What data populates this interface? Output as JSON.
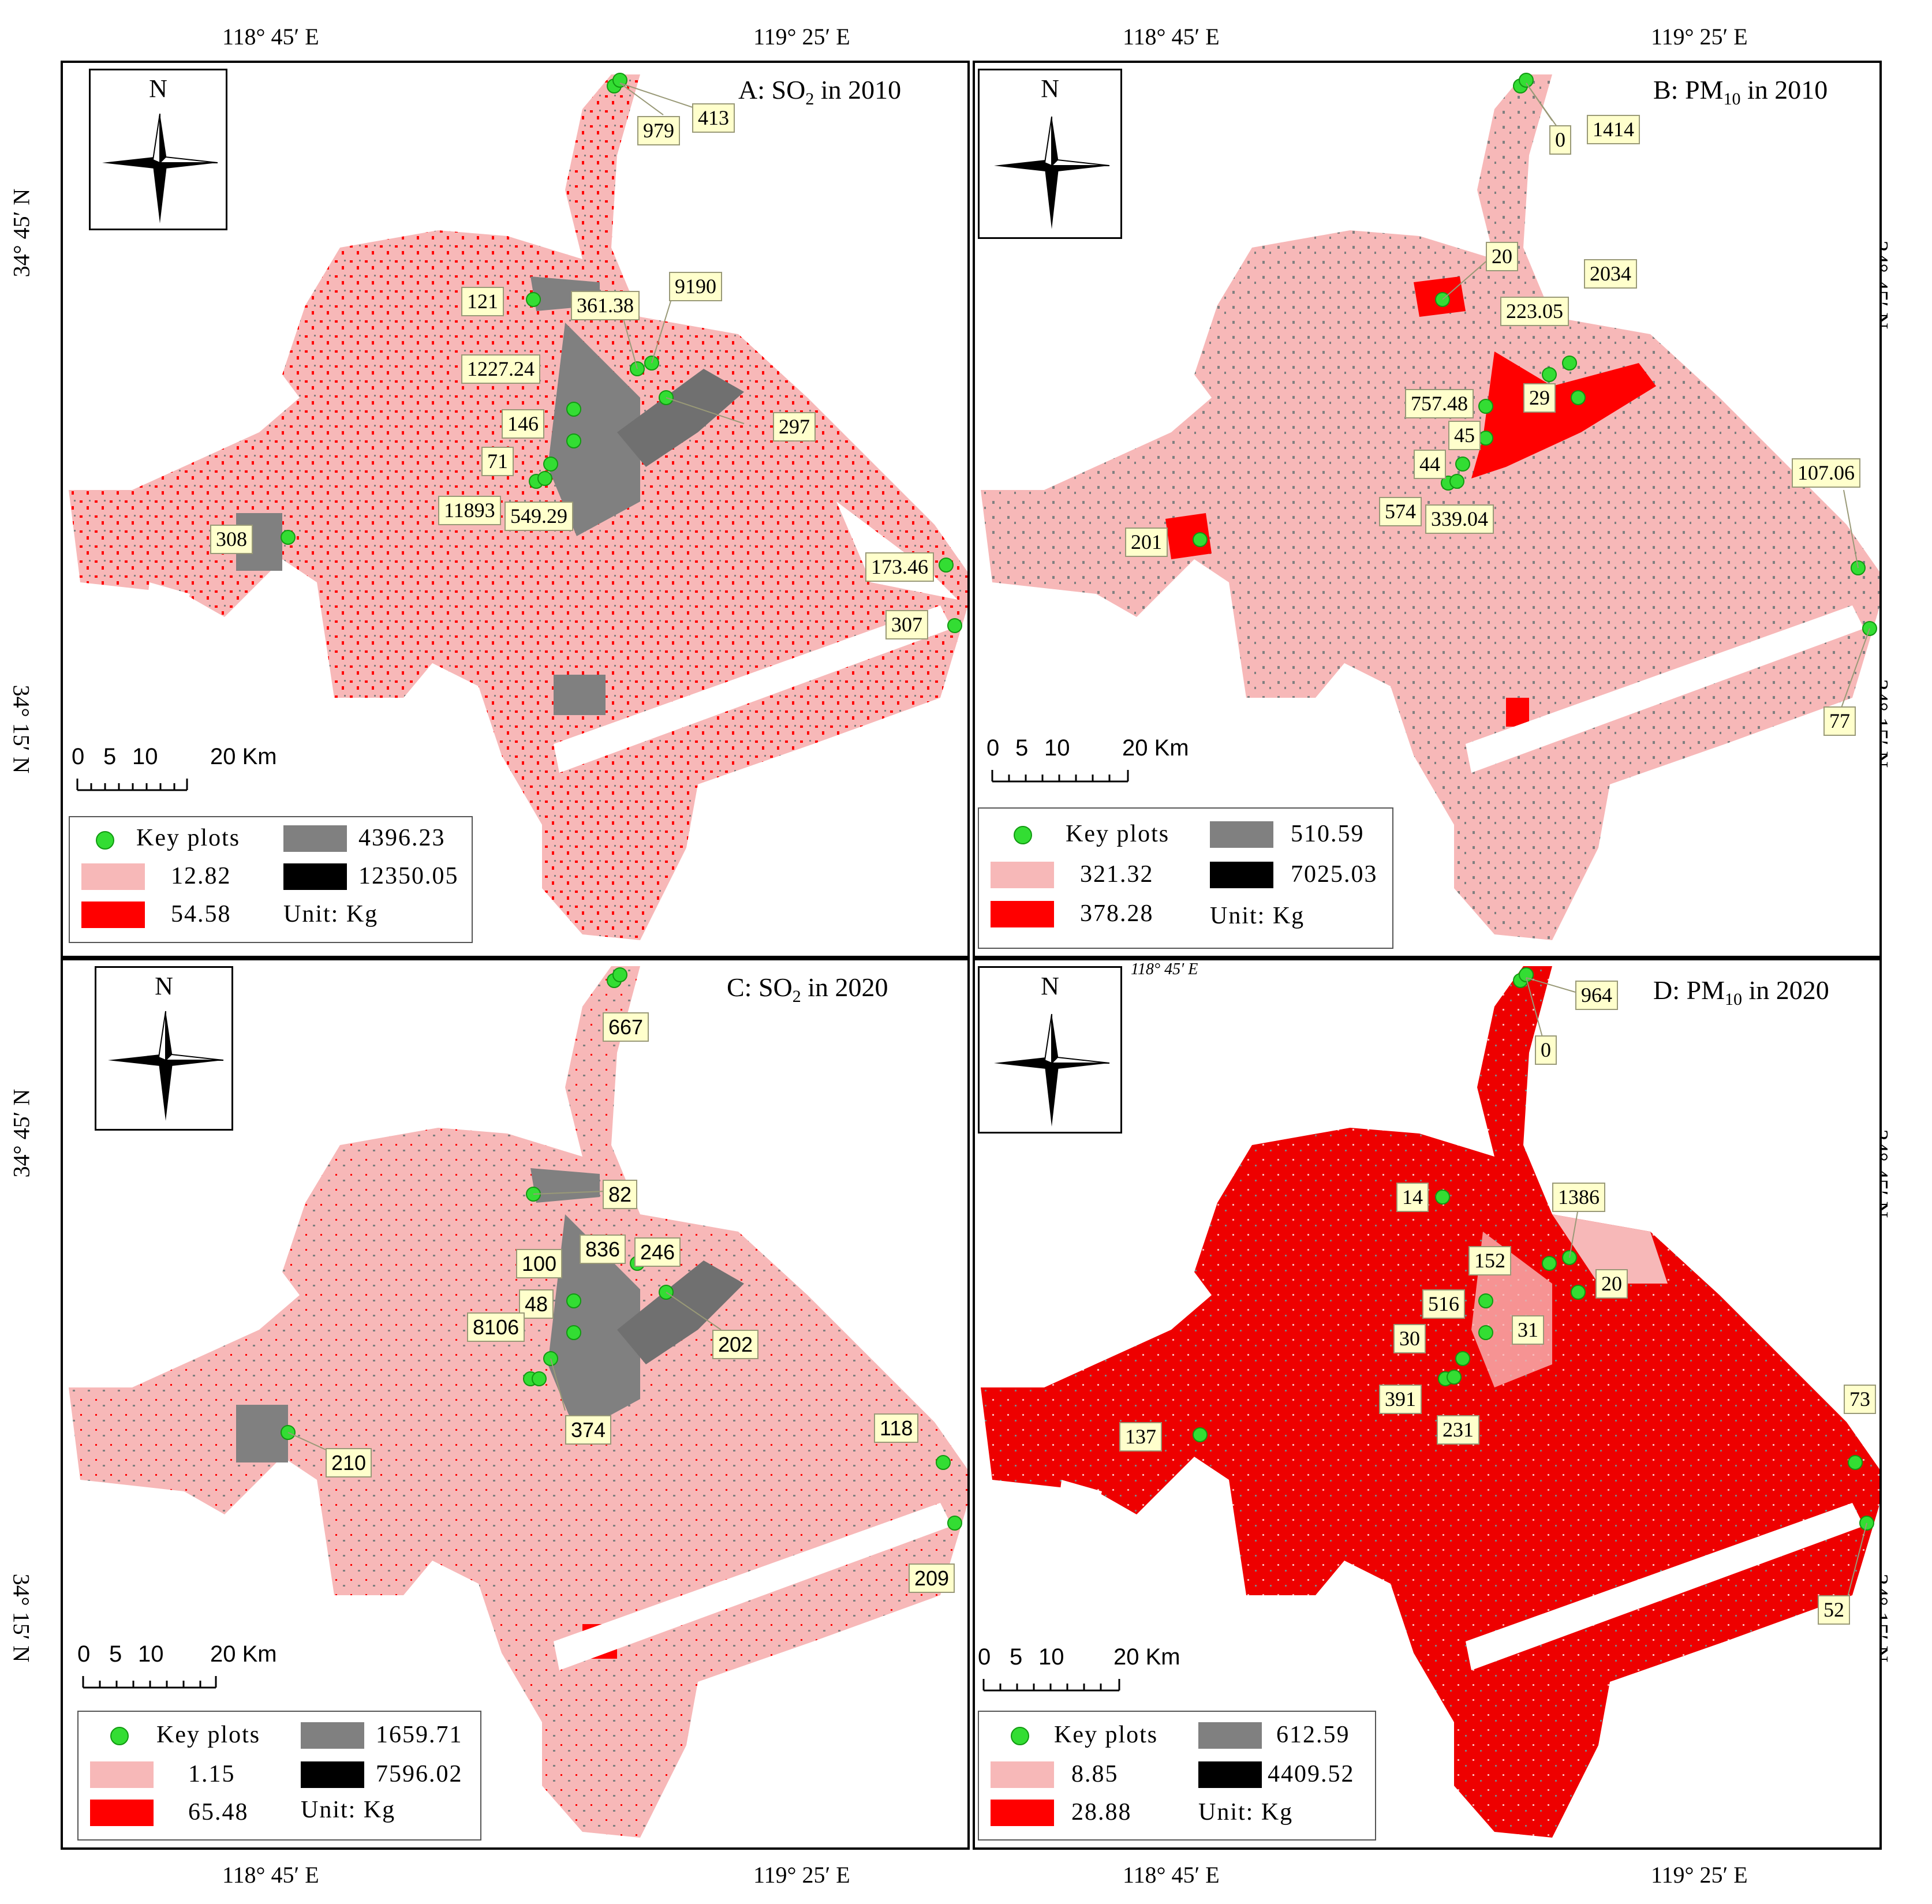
{
  "coords": {
    "lon_left": "118° 45′ E",
    "lon_right": "119° 25′ E",
    "lat_upper": "34° 45′ N",
    "lat_lower": "34° 15′ N"
  },
  "colors": {
    "light": "#f7b8b8",
    "red": "#ff0000",
    "gray": "#808080",
    "black": "#000000",
    "key_plot": "#33dd33",
    "callout_bg": "#ffffcc"
  },
  "north_label": "N",
  "scale_labels": [
    "0",
    "5",
    "10",
    "20 Km"
  ],
  "legend_key_label": "Key plots",
  "unit_label": "Unit: Kg",
  "panels": {
    "A": {
      "title_prefix": "A: SO",
      "title_sub": "2",
      "title_suffix": "  in 2010",
      "legend": {
        "light": "12.82",
        "red": "54.58",
        "gray": "4396.23",
        "black": "12350.05"
      },
      "callouts": [
        "979",
        "413",
        "121",
        "361.38",
        "9190",
        "1227.24",
        "297",
        "146",
        "71",
        "11893",
        "549.29",
        "308",
        "173.46",
        "307"
      ]
    },
    "B": {
      "title_prefix": "B: PM",
      "title_sub": "10",
      "title_suffix": " in 2010",
      "legend": {
        "light": "321.32",
        "red": "378.28",
        "gray": "510.59",
        "black": "7025.03"
      },
      "callouts": [
        "0",
        "1414",
        "20",
        "2034",
        "223.05",
        "757.48",
        "29",
        "45",
        "44",
        "574",
        "339.04",
        "201",
        "107.06",
        "77"
      ]
    },
    "C": {
      "title_prefix": "C: SO",
      "title_sub": "2",
      "title_suffix": "  in 2020",
      "legend": {
        "light": "1.15",
        "red": "65.48",
        "gray": "1659.71",
        "black": "7596.02"
      },
      "callouts": [
        "667",
        "82",
        "100",
        "836",
        "246",
        "48",
        "8106",
        "202",
        "374",
        "210",
        "118",
        "209"
      ]
    },
    "D": {
      "title_prefix": "D: PM",
      "title_sub": "10",
      "title_suffix": " in 2020",
      "legend": {
        "light": "8.85",
        "red": "28.88",
        "gray": "612.59",
        "black": "4409.52"
      },
      "callouts": [
        "964",
        "0",
        "14",
        "1386",
        "152",
        "20",
        "516",
        "31",
        "30",
        "391",
        "231",
        "137",
        "73",
        "52"
      ],
      "inner_coord": "118° 45′ E"
    }
  }
}
